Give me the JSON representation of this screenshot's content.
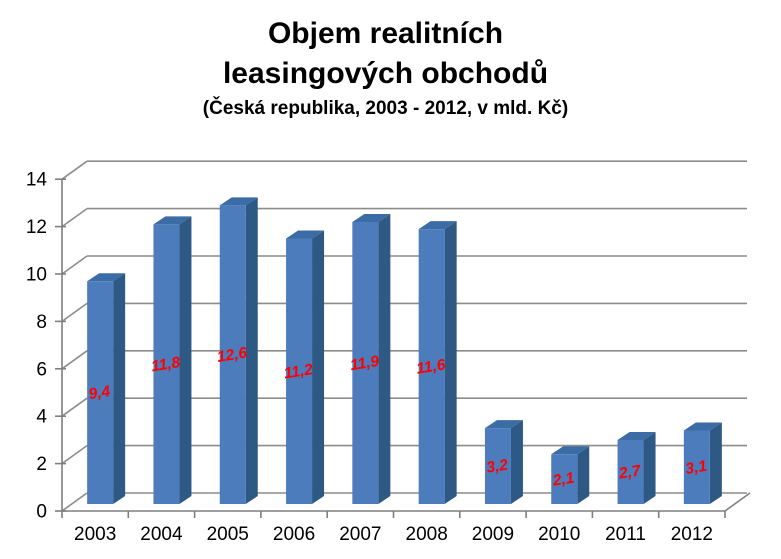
{
  "chart_data": {
    "type": "bar",
    "style": "3d-column",
    "title_lines": [
      "Objem realitních",
      "leasingových obchodů"
    ],
    "subtitle": "(Česká republika, 2003 - 2012, v mld. Kč)",
    "xlabel": "",
    "ylabel": "",
    "categories": [
      "2003",
      "2004",
      "2005",
      "2006",
      "2007",
      "2008",
      "2009",
      "2010",
      "2011",
      "2012"
    ],
    "values": [
      9.4,
      11.8,
      12.6,
      11.2,
      11.9,
      11.6,
      3.2,
      2.1,
      2.7,
      3.1
    ],
    "value_labels": [
      "9,4",
      "11,8",
      "12,6",
      "11,2",
      "11,9",
      "11,6",
      "3,2",
      "2,1",
      "2,7",
      "3,1"
    ],
    "ylim": [
      0,
      14
    ],
    "yticks": [
      0,
      2,
      4,
      6,
      8,
      10,
      12,
      14
    ],
    "grid": true,
    "legend": false,
    "colors": {
      "bar_front": "#4C7CBC",
      "bar_top": "#3C6CA5",
      "bar_side": "#2E5984",
      "value_label": "#FF0000",
      "gridline": "#8C8C8C",
      "axis": "#7F7F7F",
      "text": "#000000",
      "background": "#FFFFFF"
    }
  }
}
